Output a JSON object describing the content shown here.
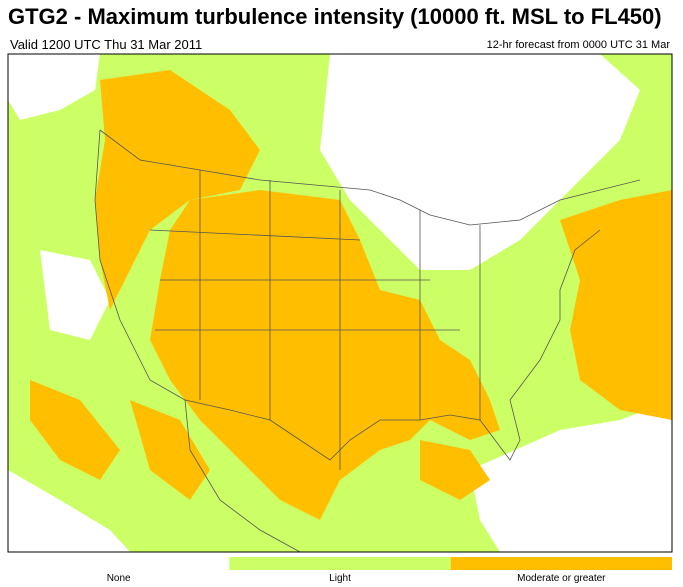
{
  "header": {
    "title": "GTG2 - Maximum turbulence intensity (10000 ft. MSL to FL450)",
    "valid": "Valid 1200 UTC Thu 31 Mar 2011",
    "forecast": "12-hr forecast from 0000 UTC 31 Mar"
  },
  "legend": {
    "items": [
      {
        "label": "None",
        "color": "#ffffff"
      },
      {
        "label": "Light",
        "color": "#ccff66"
      },
      {
        "label": "Moderate or greater",
        "color": "#ffbf00"
      }
    ]
  }
}
